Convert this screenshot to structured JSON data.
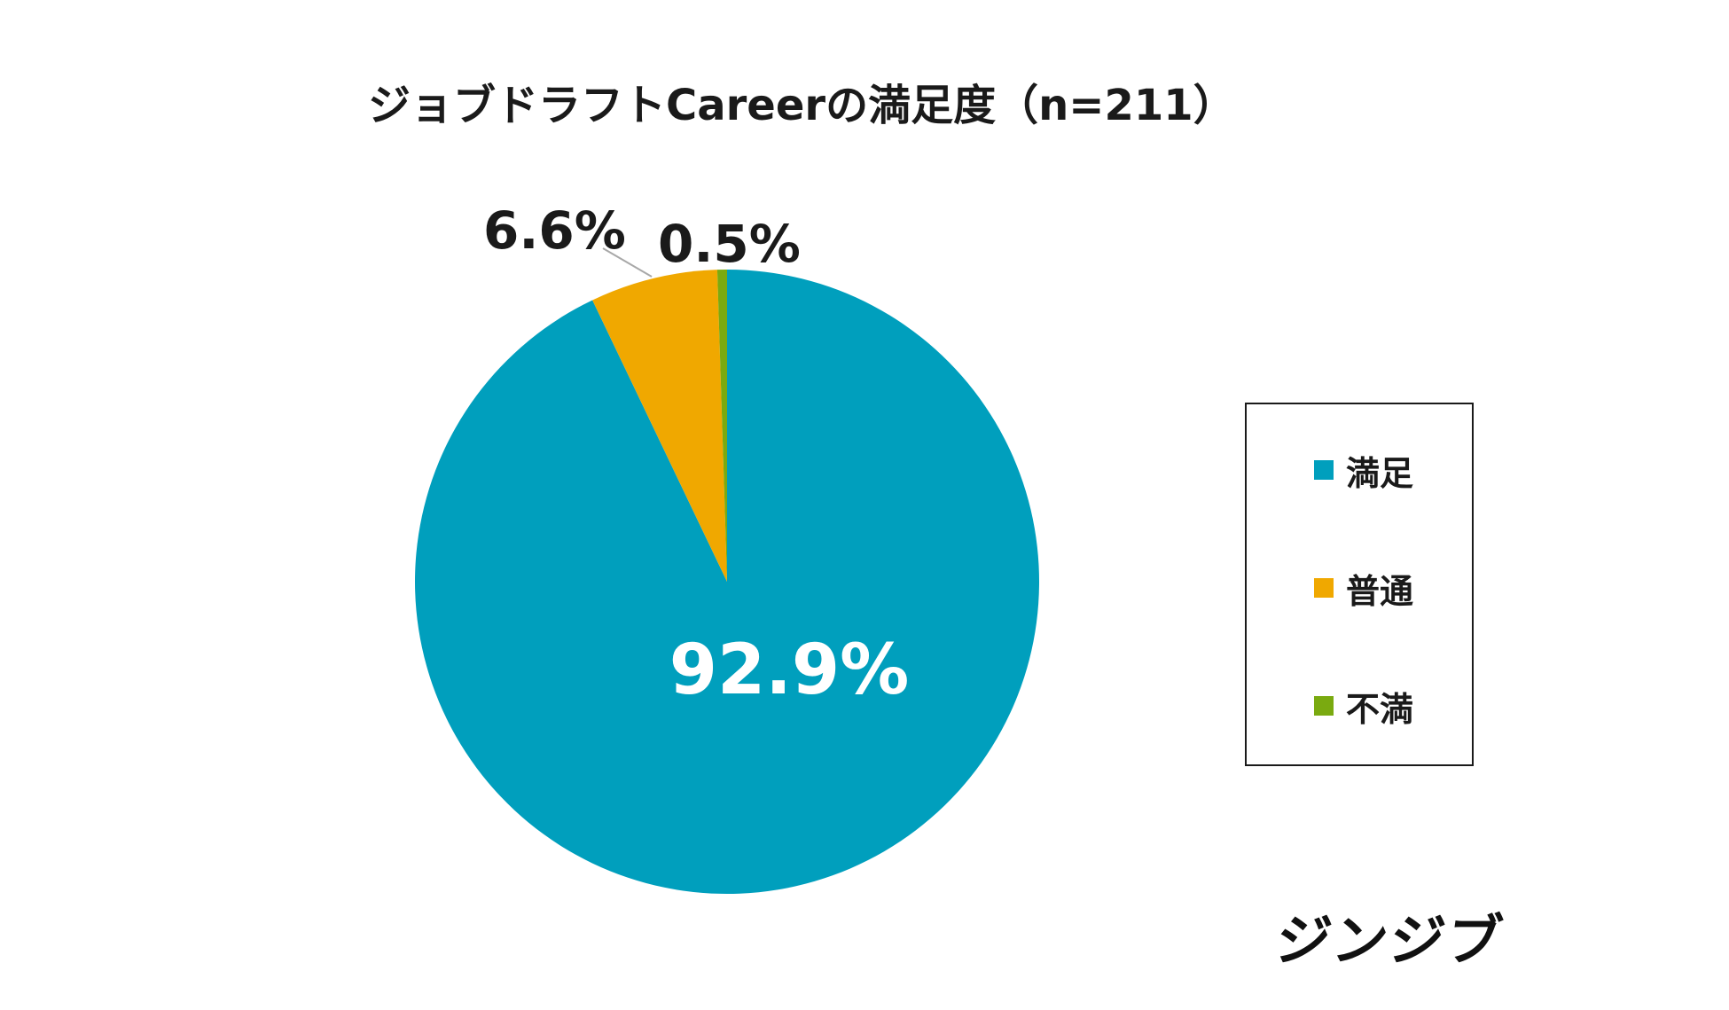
{
  "chart_data": {
    "type": "pie",
    "title": "ジョブドラフトCareerの満足度（n=211）",
    "slices": [
      {
        "label": "満足",
        "value": 92.9,
        "display": "92.9%",
        "color": "#009fbd"
      },
      {
        "label": "普通",
        "value": 6.6,
        "display": "6.6%",
        "color": "#f0a800"
      },
      {
        "label": "不満",
        "value": 0.5,
        "display": "0.5%",
        "color": "#7aaa10"
      }
    ],
    "legend_position": "right"
  },
  "legend": {
    "items": [
      {
        "label": "満足",
        "color": "#009fbd"
      },
      {
        "label": "普通",
        "color": "#f0a800"
      },
      {
        "label": "不満",
        "color": "#7aaa10"
      }
    ]
  },
  "logo": {
    "text": "ジンジブ"
  }
}
